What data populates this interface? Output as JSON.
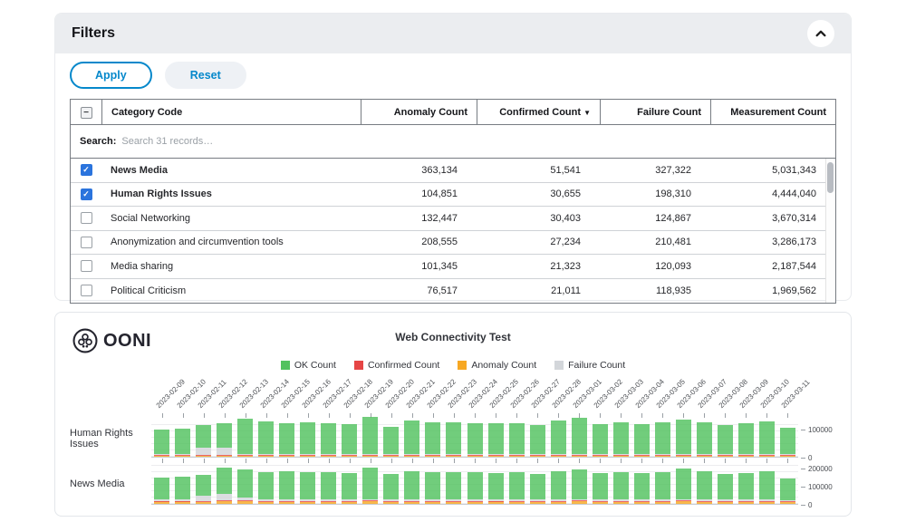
{
  "filters": {
    "title": "Filters",
    "apply_label": "Apply",
    "reset_label": "Reset"
  },
  "accent": {
    "blue": "#0588cb",
    "checkbox_blue": "#2b74dd"
  },
  "table": {
    "columns": [
      {
        "label": "Category Code"
      },
      {
        "label": "Anomaly Count"
      },
      {
        "label": "Confirmed Count",
        "sort": "▼"
      },
      {
        "label": "Failure Count"
      },
      {
        "label": "Measurement Count"
      }
    ],
    "search_label": "Search:",
    "search_placeholder": "Search 31 records…",
    "rows": [
      {
        "checked": true,
        "bold": true,
        "category": "News Media",
        "anomaly": "363,134",
        "confirmed": "51,541",
        "failure": "327,322",
        "measurement": "5,031,343"
      },
      {
        "checked": true,
        "bold": true,
        "category": "Human Rights Issues",
        "anomaly": "104,851",
        "confirmed": "30,655",
        "failure": "198,310",
        "measurement": "4,444,040"
      },
      {
        "checked": false,
        "bold": false,
        "category": "Social Networking",
        "anomaly": "132,447",
        "confirmed": "30,403",
        "failure": "124,867",
        "measurement": "3,670,314"
      },
      {
        "checked": false,
        "bold": false,
        "category": "Anonymization and circumvention tools",
        "anomaly": "208,555",
        "confirmed": "27,234",
        "failure": "210,481",
        "measurement": "3,286,173"
      },
      {
        "checked": false,
        "bold": false,
        "category": "Media sharing",
        "anomaly": "101,345",
        "confirmed": "21,323",
        "failure": "120,093",
        "measurement": "2,187,544"
      },
      {
        "checked": false,
        "bold": false,
        "category": "Political Criticism",
        "anomaly": "76,517",
        "confirmed": "21,011",
        "failure": "118,935",
        "measurement": "1,969,562"
      }
    ]
  },
  "chart_brand": "OONI",
  "chart_data": {
    "type": "bar",
    "stacked": true,
    "title": "Web Connectivity Test",
    "legend_position": "top-center",
    "grid": true,
    "colors": {
      "ok": "#52c25f",
      "confirmed": "#e64545",
      "anomaly": "#f7a823",
      "failure": "#d3d6da"
    },
    "legend": [
      {
        "key": "ok",
        "label": "OK Count"
      },
      {
        "key": "confirmed",
        "label": "Confirmed Count"
      },
      {
        "key": "anomaly",
        "label": "Anomaly Count"
      },
      {
        "key": "failure",
        "label": "Failure Count"
      }
    ],
    "x": [
      "2023-02-09",
      "2023-02-10",
      "2023-02-11",
      "2023-02-12",
      "2023-02-13",
      "2023-02-14",
      "2023-02-15",
      "2023-02-16",
      "2023-02-17",
      "2023-02-18",
      "2023-02-19",
      "2023-02-20",
      "2023-02-21",
      "2023-02-22",
      "2023-02-23",
      "2023-02-24",
      "2023-02-25",
      "2023-02-26",
      "2023-02-27",
      "2023-02-28",
      "2023-03-01",
      "2023-03-02",
      "2023-03-03",
      "2023-03-04",
      "2023-03-05",
      "2023-03-06",
      "2023-03-07",
      "2023-03-08",
      "2023-03-09",
      "2023-03-10",
      "2023-03-11"
    ],
    "rows": [
      {
        "category": "Human Rights Issues",
        "ylim": [
          0,
          135000
        ],
        "yticks": [
          100000,
          0
        ],
        "series": {
          "anomaly": [
            3000,
            3000,
            3000,
            3000,
            3000,
            4000,
            3000,
            3000,
            3000,
            3000,
            4000,
            3000,
            4000,
            3000,
            3000,
            3000,
            3000,
            3000,
            3000,
            4000,
            3000,
            3000,
            3000,
            3000,
            3000,
            4000,
            3000,
            3000,
            3000,
            3000,
            3000
          ],
          "confirmed": [
            1000,
            1000,
            1000,
            1000,
            2000,
            1000,
            1000,
            1000,
            1000,
            1000,
            1000,
            1000,
            1000,
            1000,
            1000,
            1000,
            1000,
            1000,
            1000,
            1000,
            1000,
            1000,
            1000,
            1000,
            1000,
            1000,
            1000,
            1000,
            1000,
            1000,
            1000
          ],
          "failure": [
            2000,
            2000,
            26000,
            28000,
            5000,
            2000,
            2000,
            2000,
            2000,
            2000,
            3000,
            2000,
            2000,
            2000,
            2000,
            2000,
            2000,
            2000,
            2000,
            2000,
            2000,
            2000,
            2000,
            2000,
            2000,
            2000,
            2000,
            2000,
            2000,
            2000,
            2000
          ],
          "ok": [
            88000,
            93000,
            80000,
            86000,
            124000,
            117000,
            112000,
            113000,
            110000,
            108000,
            133000,
            99000,
            118000,
            114000,
            113000,
            112000,
            110000,
            112000,
            104000,
            121000,
            129000,
            108000,
            113000,
            108000,
            115000,
            124000,
            113000,
            105000,
            112000,
            117000,
            95000
          ]
        }
      },
      {
        "category": "News Media",
        "ylim": [
          0,
          230000
        ],
        "yticks": [
          200000,
          100000,
          0
        ],
        "series": {
          "anomaly": [
            13000,
            13000,
            12000,
            14000,
            14000,
            12000,
            12000,
            12000,
            12000,
            12000,
            14000,
            12000,
            12000,
            12000,
            12000,
            12000,
            13000,
            12000,
            12000,
            12000,
            14000,
            12000,
            12000,
            12000,
            12000,
            14000,
            12000,
            12000,
            12000,
            12000,
            10000
          ],
          "confirmed": [
            2000,
            2000,
            2000,
            2000,
            3000,
            2000,
            2000,
            2000,
            2000,
            2000,
            2000,
            2000,
            2000,
            2000,
            2000,
            2000,
            2000,
            2000,
            2000,
            2000,
            2000,
            2000,
            2000,
            2000,
            2000,
            2000,
            2000,
            2000,
            2000,
            2000,
            2000
          ],
          "failure": [
            8000,
            8000,
            30000,
            35000,
            15000,
            10000,
            10000,
            10000,
            10000,
            10000,
            8000,
            10000,
            10000,
            10000,
            10000,
            10000,
            10000,
            10000,
            8000,
            8000,
            8000,
            8000,
            8000,
            8000,
            8000,
            8000,
            8000,
            8000,
            8000,
            8000,
            6000
          ],
          "ok": [
            118000,
            123000,
            112000,
            146000,
            155000,
            148000,
            152000,
            150000,
            148000,
            145000,
            172000,
            138000,
            152000,
            148000,
            150000,
            147000,
            145000,
            148000,
            140000,
            158000,
            165000,
            148000,
            152000,
            145000,
            152000,
            168000,
            155000,
            140000,
            148000,
            155000,
            118000
          ]
        }
      }
    ]
  }
}
